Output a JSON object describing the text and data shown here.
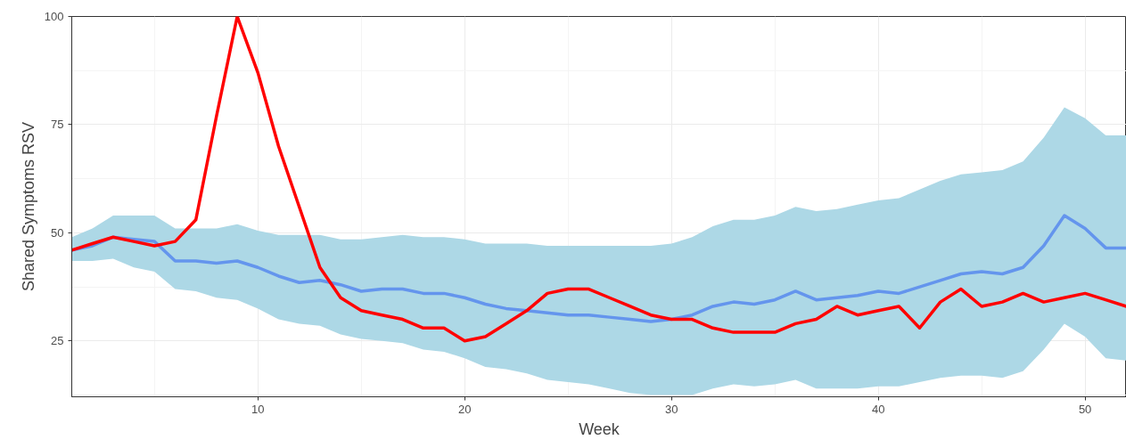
{
  "chart_data": {
    "type": "line",
    "xlabel": "Week",
    "ylabel": "Shared Symptoms RSV",
    "x": [
      1,
      2,
      3,
      4,
      5,
      6,
      7,
      8,
      9,
      10,
      11,
      12,
      13,
      14,
      15,
      16,
      17,
      18,
      19,
      20,
      21,
      22,
      23,
      24,
      25,
      26,
      27,
      28,
      29,
      30,
      31,
      32,
      33,
      34,
      35,
      36,
      37,
      38,
      39,
      40,
      41,
      42,
      43,
      44,
      45,
      46,
      47,
      48,
      49,
      50,
      51,
      52
    ],
    "series": [
      {
        "color": "#6495ed",
        "values": [
          46,
          47,
          49,
          48.5,
          48,
          43.5,
          43.5,
          43,
          43.5,
          42,
          40,
          38.5,
          39,
          38,
          36.5,
          37,
          37,
          36,
          36,
          35,
          33.5,
          32.5,
          32,
          31.5,
          31,
          31,
          30.5,
          30,
          29.5,
          30,
          31,
          33,
          34,
          33.5,
          34.5,
          36.5,
          34.5,
          35,
          35.5,
          36.5,
          36,
          37.5,
          39,
          40.5,
          41,
          40.5,
          42,
          47,
          54,
          51,
          46.5,
          46.5
        ],
        "upper": [
          49,
          51,
          54,
          54,
          54,
          51,
          51,
          51,
          52,
          50.5,
          49.5,
          49.5,
          49.5,
          48.5,
          48.5,
          49,
          49.5,
          49,
          49,
          48.5,
          47.5,
          47.5,
          47.5,
          47,
          47,
          47,
          47,
          47,
          47,
          47.5,
          49,
          51.5,
          53,
          53,
          54,
          56,
          55,
          55.5,
          56.5,
          57.5,
          58,
          60,
          62,
          63.5,
          64,
          64.5,
          66.5,
          72,
          79,
          76.5,
          72.5,
          72.5
        ],
        "lower": [
          43.5,
          43.5,
          44,
          42,
          41,
          37,
          36.5,
          35,
          34.5,
          32.5,
          30,
          29,
          28.5,
          26.5,
          25.5,
          25,
          24.5,
          23,
          22.5,
          21,
          19,
          18.5,
          17.5,
          16,
          15.5,
          15,
          14,
          13,
          12.5,
          12.5,
          12.5,
          14,
          15,
          14.5,
          15,
          16,
          14,
          14,
          14,
          14.5,
          14.5,
          15.5,
          16.5,
          17,
          17,
          16.5,
          18,
          23,
          29,
          26,
          21,
          20.5
        ]
      },
      {
        "color": "#ff0000",
        "values": [
          46,
          47.5,
          49,
          48,
          47,
          48,
          53,
          77,
          100,
          87,
          70,
          56,
          42,
          35,
          32,
          31,
          30,
          28,
          28,
          25,
          26,
          29,
          32,
          36,
          37,
          37,
          35,
          33,
          31,
          30,
          30,
          28,
          27,
          27,
          27,
          29,
          30,
          33,
          31,
          32,
          33,
          28,
          34,
          37,
          33,
          34,
          36,
          34,
          35,
          36,
          34.5,
          33
        ]
      }
    ],
    "xlim": [
      1,
      52
    ],
    "ylim": [
      12.1,
      100
    ],
    "xticks": [
      10,
      20,
      30,
      40,
      50
    ],
    "yticks": [
      25,
      50,
      75,
      100
    ],
    "grid": true,
    "marker": "none",
    "line_style": "solid"
  }
}
